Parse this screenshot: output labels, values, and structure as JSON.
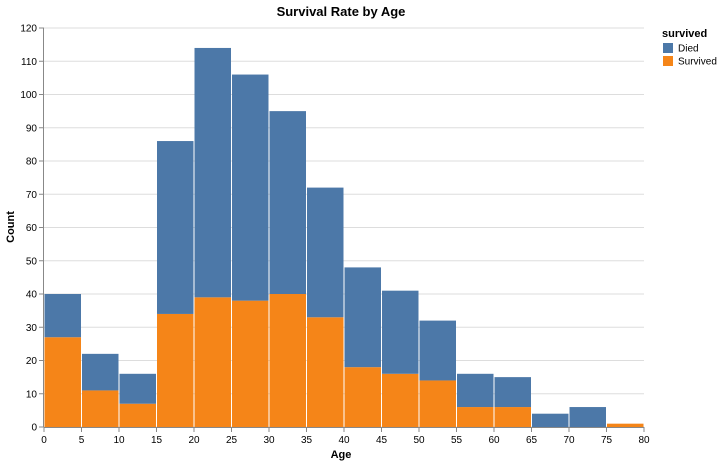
{
  "chart_data": {
    "type": "bar",
    "stacked": true,
    "title": "Survival Rate by Age",
    "xlabel": "Age",
    "ylabel": "Count",
    "xlim": [
      0,
      80
    ],
    "ylim": [
      0,
      120
    ],
    "x_ticks": [
      0,
      5,
      10,
      15,
      20,
      25,
      30,
      35,
      40,
      45,
      50,
      55,
      60,
      65,
      70,
      75,
      80
    ],
    "y_ticks": [
      0,
      10,
      20,
      30,
      40,
      50,
      60,
      70,
      80,
      90,
      100,
      110,
      120
    ],
    "bin_width": 5,
    "bins": [
      0,
      5,
      10,
      15,
      20,
      25,
      30,
      35,
      40,
      45,
      50,
      55,
      60,
      65,
      70,
      75
    ],
    "grid": true,
    "legend": {
      "title": "survived",
      "position": "top-right"
    },
    "series": [
      {
        "name": "Survived",
        "color": "#f58518",
        "values": [
          27,
          11,
          7,
          34,
          39,
          38,
          40,
          33,
          18,
          16,
          14,
          6,
          6,
          0,
          0,
          1
        ]
      },
      {
        "name": "Died",
        "color": "#4c78a8",
        "values": [
          13,
          11,
          9,
          52,
          75,
          68,
          55,
          39,
          30,
          25,
          18,
          10,
          9,
          4,
          6,
          0
        ]
      }
    ]
  }
}
